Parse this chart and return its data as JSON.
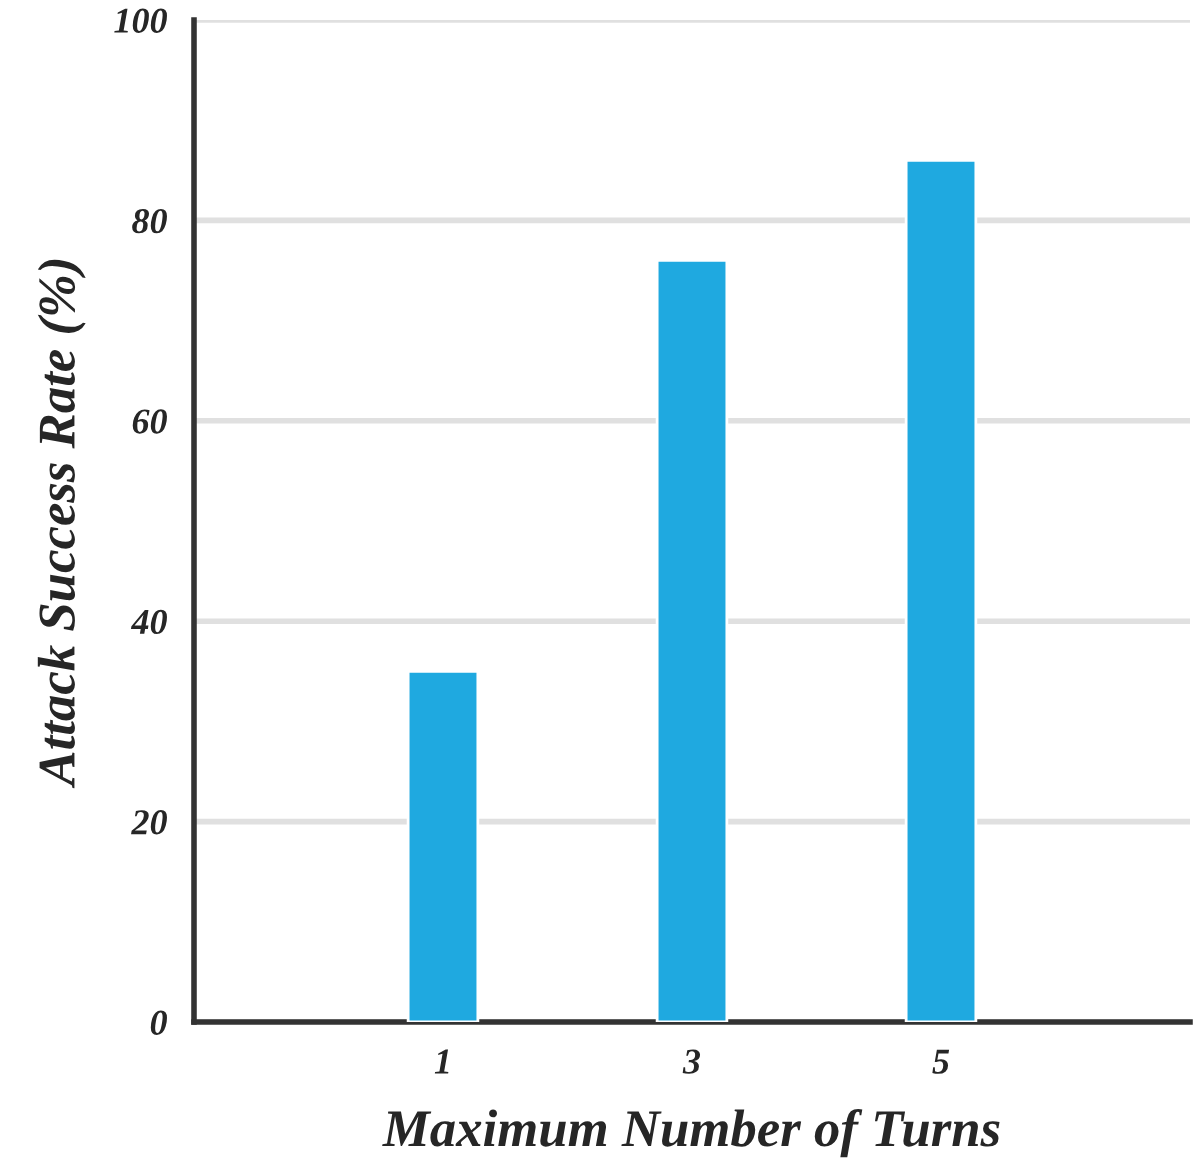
{
  "chart_data": {
    "type": "bar",
    "xlabel": "Maximum Number of Turns",
    "ylabel": "Attack Success Rate (%)",
    "x": [
      1,
      3,
      5
    ],
    "values": [
      35,
      76,
      86
    ],
    "color": "#1fa9e0",
    "xlim": [
      -1,
      7
    ],
    "xticks": [
      1,
      3,
      5
    ],
    "ylim": [
      0,
      100
    ],
    "yticks": [
      0,
      20,
      40,
      60,
      80,
      100
    ],
    "grid": "y"
  }
}
